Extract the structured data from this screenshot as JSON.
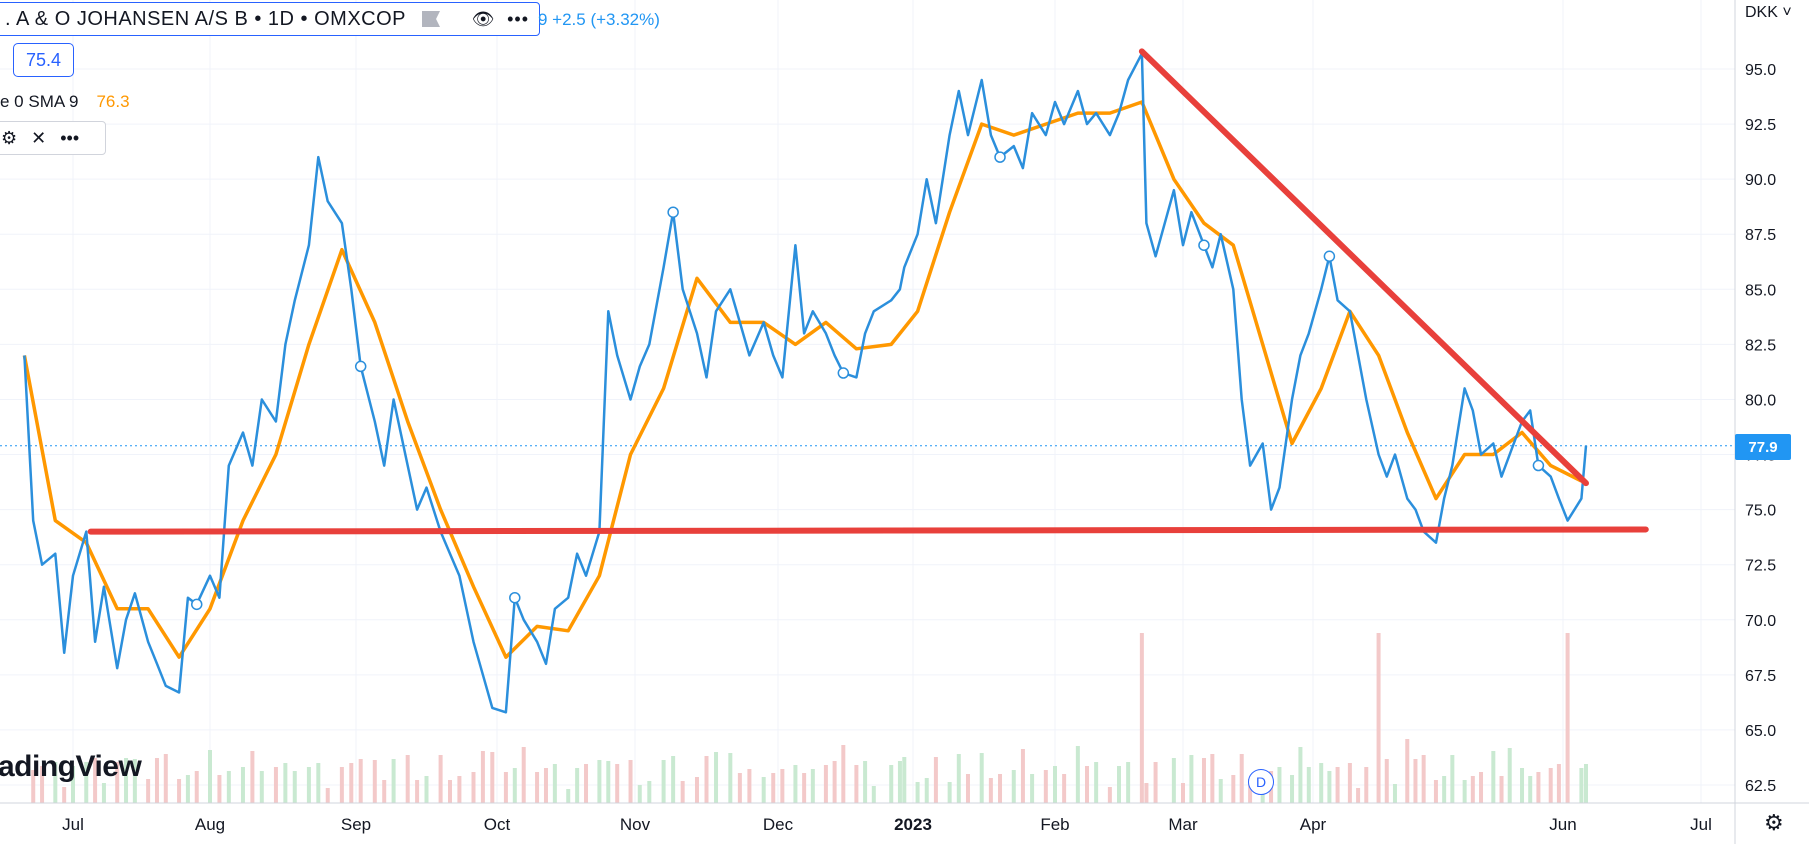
{
  "header": {
    "title": ". A & O JOHANSEN A/S B • 1D • OMXCOP",
    "change": "9  +2.5 (+3.32%)",
    "value_box": "75.4",
    "sma_label": "e 0 SMA 9",
    "sma_value": "76.3",
    "currency": "DKK",
    "watermark": "adingView",
    "last_price_tag": "77.9",
    "event_badge": "D"
  },
  "icons": {
    "eye": "eye-icon",
    "more": "more-icon",
    "flag": "flag-icon",
    "gear": "gear-icon",
    "close": "close-icon",
    "settings": "settings-icon"
  },
  "colors": {
    "price": "#2b8fdc",
    "sma": "#ff9800",
    "trendline": "#e8403b",
    "volume_up": "#c9e9d1",
    "volume_down": "#f3c9c9",
    "last_price_tag": "#2196f3"
  },
  "chart_data": {
    "type": "line",
    "x_axis": {
      "tick_labels": [
        "Jul",
        "Aug",
        "Sep",
        "Oct",
        "Nov",
        "Dec",
        "2023",
        "Feb",
        "Mar",
        "Apr",
        "Jun",
        "Jul"
      ]
    },
    "y_axis": {
      "tick_labels": [
        "62.5",
        "65.0",
        "67.5",
        "70.0",
        "72.5",
        "75.0",
        "77.5",
        "80.0",
        "82.5",
        "85.0",
        "87.5",
        "90.0",
        "92.5",
        "95.0"
      ],
      "range": [
        61.7,
        96.5
      ]
    },
    "last_price": 77.9,
    "series": [
      {
        "name": "A & O JOHANSEN A/S B",
        "type": "line",
        "points": [
          [
            "2022-06-20",
            82.0
          ],
          [
            "2022-06-22",
            74.5
          ],
          [
            "2022-06-24",
            72.5
          ],
          [
            "2022-06-27",
            73.0
          ],
          [
            "2022-06-29",
            68.5
          ],
          [
            "2022-07-01",
            72.0
          ],
          [
            "2022-07-04",
            74.0
          ],
          [
            "2022-07-06",
            69.0
          ],
          [
            "2022-07-08",
            71.5
          ],
          [
            "2022-07-11",
            67.8
          ],
          [
            "2022-07-13",
            70.0
          ],
          [
            "2022-07-15",
            71.2
          ],
          [
            "2022-07-18",
            69.0
          ],
          [
            "2022-07-20",
            68.0
          ],
          [
            "2022-07-22",
            67.0
          ],
          [
            "2022-07-25",
            66.7
          ],
          [
            "2022-07-27",
            71.0
          ],
          [
            "2022-07-29",
            70.7
          ],
          [
            "2022-08-01",
            72.0
          ],
          [
            "2022-08-03",
            71.0
          ],
          [
            "2022-08-05",
            77.0
          ],
          [
            "2022-08-08",
            78.5
          ],
          [
            "2022-08-10",
            77.0
          ],
          [
            "2022-08-12",
            80.0
          ],
          [
            "2022-08-15",
            79.0
          ],
          [
            "2022-08-17",
            82.5
          ],
          [
            "2022-08-19",
            84.5
          ],
          [
            "2022-08-22",
            87.0
          ],
          [
            "2022-08-24",
            91.0
          ],
          [
            "2022-08-26",
            89.0
          ],
          [
            "2022-08-29",
            88.0
          ],
          [
            "2022-08-31",
            85.0
          ],
          [
            "2022-09-02",
            81.5
          ],
          [
            "2022-09-05",
            79.0
          ],
          [
            "2022-09-07",
            77.0
          ],
          [
            "2022-09-09",
            80.0
          ],
          [
            "2022-09-12",
            77.0
          ],
          [
            "2022-09-14",
            75.0
          ],
          [
            "2022-09-16",
            76.0
          ],
          [
            "2022-09-19",
            74.0
          ],
          [
            "2022-09-21",
            73.0
          ],
          [
            "2022-09-23",
            72.0
          ],
          [
            "2022-09-26",
            69.0
          ],
          [
            "2022-09-28",
            67.5
          ],
          [
            "2022-09-30",
            66.0
          ],
          [
            "2022-10-03",
            65.8
          ],
          [
            "2022-10-05",
            71.0
          ],
          [
            "2022-10-07",
            70.0
          ],
          [
            "2022-10-10",
            69.0
          ],
          [
            "2022-10-12",
            68.0
          ],
          [
            "2022-10-14",
            70.5
          ],
          [
            "2022-10-17",
            71.0
          ],
          [
            "2022-10-19",
            73.0
          ],
          [
            "2022-10-21",
            72.0
          ],
          [
            "2022-10-24",
            74.0
          ],
          [
            "2022-10-26",
            84.0
          ],
          [
            "2022-10-28",
            82.0
          ],
          [
            "2022-10-31",
            80.0
          ],
          [
            "2022-11-02",
            81.5
          ],
          [
            "2022-11-04",
            82.5
          ],
          [
            "2022-11-07",
            86.0
          ],
          [
            "2022-11-09",
            88.5
          ],
          [
            "2022-11-11",
            85.0
          ],
          [
            "2022-11-14",
            83.0
          ],
          [
            "2022-11-16",
            81.0
          ],
          [
            "2022-11-18",
            84.0
          ],
          [
            "2022-11-21",
            85.0
          ],
          [
            "2022-11-23",
            83.5
          ],
          [
            "2022-11-25",
            82.0
          ],
          [
            "2022-11-28",
            83.5
          ],
          [
            "2022-11-30",
            82.0
          ],
          [
            "2022-12-02",
            81.0
          ],
          [
            "2022-12-05",
            87.0
          ],
          [
            "2022-12-07",
            83.0
          ],
          [
            "2022-12-09",
            84.0
          ],
          [
            "2022-12-12",
            83.0
          ],
          [
            "2022-12-14",
            82.0
          ],
          [
            "2022-12-16",
            81.2
          ],
          [
            "2022-12-19",
            81.0
          ],
          [
            "2022-12-21",
            83.0
          ],
          [
            "2022-12-23",
            84.0
          ],
          [
            "2022-12-27",
            84.5
          ],
          [
            "2022-12-29",
            85.0
          ],
          [
            "2022-12-30",
            86.0
          ],
          [
            "2023-01-02",
            87.5
          ],
          [
            "2023-01-04",
            90.0
          ],
          [
            "2023-01-06",
            88.0
          ],
          [
            "2023-01-09",
            92.0
          ],
          [
            "2023-01-11",
            94.0
          ],
          [
            "2023-01-13",
            92.0
          ],
          [
            "2023-01-16",
            94.5
          ],
          [
            "2023-01-18",
            92.0
          ],
          [
            "2023-01-20",
            91.0
          ],
          [
            "2023-01-23",
            91.5
          ],
          [
            "2023-01-25",
            90.5
          ],
          [
            "2023-01-27",
            93.0
          ],
          [
            "2023-01-30",
            92.0
          ],
          [
            "2023-02-01",
            93.5
          ],
          [
            "2023-02-03",
            92.5
          ],
          [
            "2023-02-06",
            94.0
          ],
          [
            "2023-02-08",
            92.5
          ],
          [
            "2023-02-10",
            93.0
          ],
          [
            "2023-02-13",
            92.0
          ],
          [
            "2023-02-15",
            93.0
          ],
          [
            "2023-02-17",
            94.5
          ],
          [
            "2023-02-20",
            95.7
          ],
          [
            "2023-02-21",
            88.0
          ],
          [
            "2023-02-23",
            86.5
          ],
          [
            "2023-02-27",
            89.5
          ],
          [
            "2023-03-01",
            87.0
          ],
          [
            "2023-03-03",
            88.5
          ],
          [
            "2023-03-06",
            87.0
          ],
          [
            "2023-03-08",
            86.0
          ],
          [
            "2023-03-10",
            87.5
          ],
          [
            "2023-03-13",
            85.0
          ],
          [
            "2023-03-15",
            80.0
          ],
          [
            "2023-03-17",
            77.0
          ],
          [
            "2023-03-20",
            78.0
          ],
          [
            "2023-03-22",
            75.0
          ],
          [
            "2023-03-24",
            76.0
          ],
          [
            "2023-03-27",
            80.0
          ],
          [
            "2023-03-29",
            82.0
          ],
          [
            "2023-03-31",
            83.0
          ],
          [
            "2023-04-03",
            85.0
          ],
          [
            "2023-04-05",
            86.5
          ],
          [
            "2023-04-07",
            84.5
          ],
          [
            "2023-04-10",
            84.0
          ],
          [
            "2023-04-12",
            82.0
          ],
          [
            "2023-04-14",
            80.0
          ],
          [
            "2023-04-17",
            77.5
          ],
          [
            "2023-04-19",
            76.5
          ],
          [
            "2023-04-21",
            77.5
          ],
          [
            "2023-04-24",
            75.5
          ],
          [
            "2023-04-26",
            75.0
          ],
          [
            "2023-04-28",
            74.0
          ],
          [
            "2023-05-01",
            73.5
          ],
          [
            "2023-05-03",
            75.5
          ],
          [
            "2023-05-05",
            77.0
          ],
          [
            "2023-05-08",
            80.5
          ],
          [
            "2023-05-10",
            79.5
          ],
          [
            "2023-05-12",
            77.5
          ],
          [
            "2023-05-15",
            78.0
          ],
          [
            "2023-05-17",
            76.5
          ],
          [
            "2023-05-19",
            77.5
          ],
          [
            "2023-05-22",
            79.0
          ],
          [
            "2023-05-24",
            79.5
          ],
          [
            "2023-05-26",
            77.0
          ],
          [
            "2023-05-29",
            76.5
          ],
          [
            "2023-05-31",
            75.5
          ],
          [
            "2023-06-02",
            74.5
          ],
          [
            "2023-06-05",
            75.5
          ],
          [
            "2023-06-06",
            77.9
          ]
        ]
      },
      {
        "name": "SMA 9",
        "type": "line",
        "points": [
          [
            "2022-06-20",
            82.0
          ],
          [
            "2022-06-27",
            74.5
          ],
          [
            "2022-07-04",
            73.5
          ],
          [
            "2022-07-11",
            70.5
          ],
          [
            "2022-07-18",
            70.5
          ],
          [
            "2022-07-25",
            68.3
          ],
          [
            "2022-08-01",
            70.5
          ],
          [
            "2022-08-08",
            74.5
          ],
          [
            "2022-08-15",
            77.5
          ],
          [
            "2022-08-22",
            82.5
          ],
          [
            "2022-08-29",
            86.8
          ],
          [
            "2022-09-05",
            83.5
          ],
          [
            "2022-09-12",
            79.0
          ],
          [
            "2022-09-19",
            75.0
          ],
          [
            "2022-09-26",
            71.5
          ],
          [
            "2022-10-03",
            68.3
          ],
          [
            "2022-10-10",
            69.7
          ],
          [
            "2022-10-17",
            69.5
          ],
          [
            "2022-10-24",
            72.0
          ],
          [
            "2022-10-31",
            77.5
          ],
          [
            "2022-11-07",
            80.5
          ],
          [
            "2022-11-14",
            85.5
          ],
          [
            "2022-11-21",
            83.5
          ],
          [
            "2022-11-28",
            83.5
          ],
          [
            "2022-12-05",
            82.5
          ],
          [
            "2022-12-12",
            83.5
          ],
          [
            "2022-12-19",
            82.3
          ],
          [
            "2022-12-27",
            82.5
          ],
          [
            "2023-01-02",
            84.0
          ],
          [
            "2023-01-09",
            88.5
          ],
          [
            "2023-01-16",
            92.5
          ],
          [
            "2023-01-23",
            92.0
          ],
          [
            "2023-01-30",
            92.5
          ],
          [
            "2023-02-06",
            93.0
          ],
          [
            "2023-02-13",
            93.0
          ],
          [
            "2023-02-20",
            93.5
          ],
          [
            "2023-02-27",
            90.0
          ],
          [
            "2023-03-06",
            88.0
          ],
          [
            "2023-03-13",
            87.0
          ],
          [
            "2023-03-20",
            82.5
          ],
          [
            "2023-03-27",
            78.0
          ],
          [
            "2023-04-03",
            80.5
          ],
          [
            "2023-04-10",
            84.0
          ],
          [
            "2023-04-17",
            82.0
          ],
          [
            "2023-04-24",
            78.5
          ],
          [
            "2023-05-01",
            75.5
          ],
          [
            "2023-05-08",
            77.5
          ],
          [
            "2023-05-15",
            77.5
          ],
          [
            "2023-05-22",
            78.5
          ],
          [
            "2023-05-29",
            77.0
          ],
          [
            "2023-06-05",
            76.3
          ]
        ]
      }
    ],
    "trendlines": [
      {
        "from": [
          "2022-07-05",
          74.0
        ],
        "to": [
          "2023-06-19",
          74.1
        ]
      },
      {
        "from": [
          "2023-02-20",
          95.8
        ],
        "to": [
          "2023-06-06",
          76.2
        ]
      }
    ],
    "volume": {
      "spikes": [
        {
          "date": "2022-10-25",
          "direction": "up"
        },
        {
          "date": "2023-02-20",
          "direction": "down"
        },
        {
          "date": "2023-04-17",
          "direction": "down"
        },
        {
          "date": "2023-06-02",
          "direction": "down"
        }
      ]
    }
  }
}
